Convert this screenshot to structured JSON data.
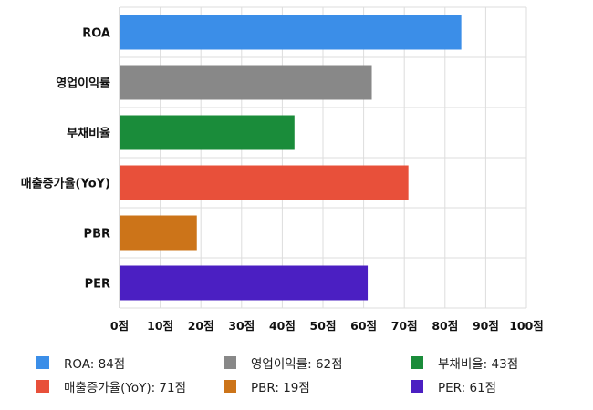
{
  "chart_data": {
    "type": "bar",
    "orientation": "horizontal",
    "categories": [
      "ROA",
      "영업이익률",
      "부채비율",
      "매출증가율(YoY)",
      "PBR",
      "PER"
    ],
    "values": [
      84,
      62,
      43,
      71,
      19,
      61
    ],
    "colors": [
      "#3b8ee8",
      "#888888",
      "#1a8c3a",
      "#e8503a",
      "#cc7419",
      "#4b1fc2"
    ],
    "xlim": [
      0,
      100
    ],
    "x_ticks": [
      0,
      10,
      20,
      30,
      40,
      50,
      60,
      70,
      80,
      90,
      100
    ],
    "x_tick_labels": [
      "0점",
      "10점",
      "20점",
      "30점",
      "40점",
      "50점",
      "60점",
      "70점",
      "80점",
      "90점",
      "100점"
    ],
    "grid": true,
    "legend_position": "bottom",
    "legend": [
      "ROA: 84점",
      "영업이익률: 62점",
      "부채비율: 43점",
      "매출증가율(YoY): 71점",
      "PBR: 19점",
      "PER: 61점"
    ]
  }
}
